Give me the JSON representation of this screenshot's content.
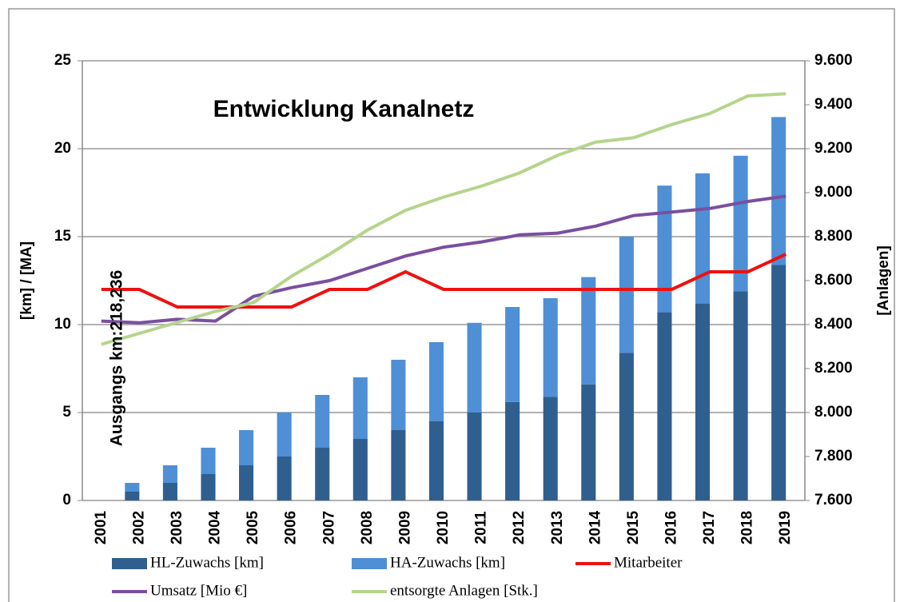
{
  "chart_data": {
    "type": "bar",
    "stacked": true,
    "title": "Entwicklung Kanalnetz",
    "ylabel": "[km] / [MA]",
    "y2label": "[Anlagen]",
    "annotation": "Ausgangs km:218,236",
    "categories": [
      "2001",
      "2002",
      "2003",
      "2004",
      "2005",
      "2006",
      "2007",
      "2008",
      "2009",
      "2010",
      "2011",
      "2012",
      "2013",
      "2014",
      "2015",
      "2016",
      "2017",
      "2018",
      "2019"
    ],
    "series": [
      {
        "name": "HL-Zuwachs [km]",
        "type": "bar",
        "color": "#2f5f8f",
        "values": [
          0,
          0.5,
          1,
          1.5,
          2,
          2.5,
          3,
          3.5,
          4,
          4.5,
          5,
          5.6,
          5.9,
          6.6,
          8.4,
          10.7,
          11.2,
          11.9,
          13.4
        ]
      },
      {
        "name": "HA-Zuwachs [km]",
        "type": "bar",
        "color": "#4f8fd6",
        "values": [
          0,
          0.5,
          1,
          1.5,
          2,
          2.5,
          3,
          3.5,
          4,
          4.5,
          5.1,
          5.4,
          5.6,
          6.1,
          6.6,
          7.2,
          7.4,
          7.7,
          8.4
        ]
      },
      {
        "name": "Mitarbeiter",
        "type": "line",
        "color": "#ee1111",
        "values": [
          12,
          12,
          11,
          11,
          11,
          11,
          12,
          12,
          13,
          12,
          12,
          12,
          12,
          12,
          12,
          12,
          13,
          13,
          14
        ]
      },
      {
        "name": "Umsatz [Mio €]",
        "type": "line",
        "color": "#7a4fa0",
        "values": [
          10.2,
          10.1,
          10.3,
          10.2,
          11.6,
          12.1,
          12.5,
          13.2,
          13.9,
          14.4,
          14.7,
          15.1,
          15.2,
          15.6,
          16.2,
          16.4,
          16.6,
          17.0,
          17.3
        ]
      },
      {
        "name": "entsorgte Anlagen [Stk.]",
        "type": "line",
        "axis": "y2",
        "color": "#b5d58c",
        "values": [
          8310,
          8360,
          8410,
          8460,
          8500,
          8620,
          8720,
          8830,
          8920,
          8980,
          9030,
          9090,
          9170,
          9230,
          9250,
          9310,
          9360,
          9440,
          9450
        ]
      }
    ],
    "ylim": [
      0,
      25
    ],
    "yticks": [
      0,
      5,
      10,
      15,
      20,
      25
    ],
    "y2lim": [
      7600,
      9600
    ],
    "y2ticks": [
      {
        "value": 7600,
        "label": "7.600"
      },
      {
        "value": 7800,
        "label": "7.800"
      },
      {
        "value": 8000,
        "label": "8.000"
      },
      {
        "value": 8200,
        "label": "8.200"
      },
      {
        "value": 8400,
        "label": "8.400"
      },
      {
        "value": 8600,
        "label": "8.600"
      },
      {
        "value": 8800,
        "label": "8.800"
      },
      {
        "value": 9000,
        "label": "9.000"
      },
      {
        "value": 9200,
        "label": "9.200"
      },
      {
        "value": 9400,
        "label": "9.400"
      },
      {
        "value": 9600,
        "label": "9.600"
      }
    ],
    "grid": true
  }
}
